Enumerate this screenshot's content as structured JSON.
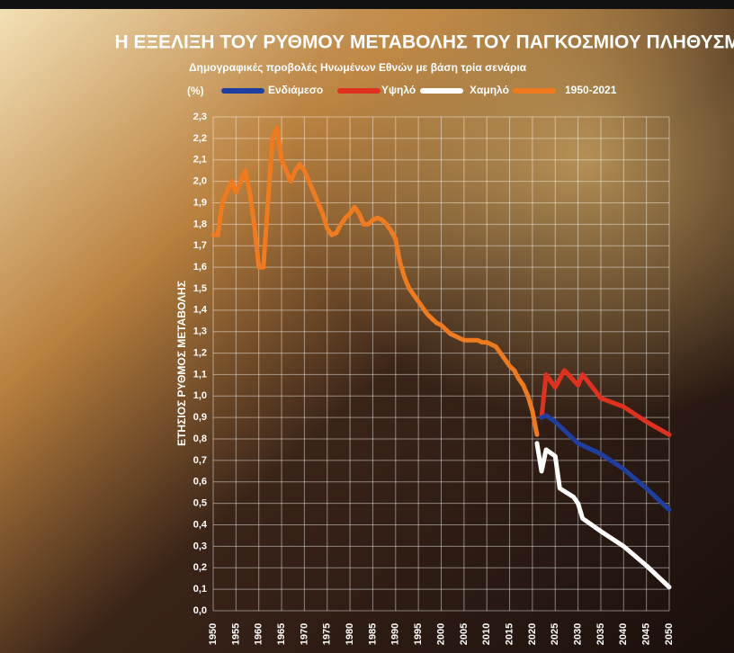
{
  "chart_data": {
    "type": "line",
    "title": "Η ΕΞΕΛΙΞΗ ΤΟΥ ΡΥΘΜΟΥ ΜΕΤΑΒΟΛΗΣ ΤΟΥ ΠΑΓΚΟΣΜΙΟΥ ΠΛΗΘΥΣΜΟΥ",
    "subtitle": "Δημογραφικές προβολές Ηνωμένων Εθνών με βάση τρία σενάρια",
    "unit": "(%)",
    "y_label": "ΕΤΗΣΙΟΣ ΡΥΘΜΟΣ ΜΕΤΑΒΟΛΗΣ",
    "xlim": [
      1950,
      2050
    ],
    "xticks": [
      1950,
      1955,
      1960,
      1965,
      1970,
      1975,
      1980,
      1985,
      1990,
      1995,
      2000,
      2005,
      2010,
      2015,
      2020,
      2025,
      2030,
      2035,
      2040,
      2045,
      2050
    ],
    "ylim": [
      0,
      2.3
    ],
    "yticks": [
      {
        "value": 0,
        "label": "0,0"
      },
      {
        "value": 0.1,
        "label": "0,1"
      },
      {
        "value": 0.2,
        "label": "0,2"
      },
      {
        "value": 0.3,
        "label": "0,3"
      },
      {
        "value": 0.4,
        "label": "0,4"
      },
      {
        "value": 0.5,
        "label": "0,5"
      },
      {
        "value": 0.6,
        "label": "0,6"
      },
      {
        "value": 0.7,
        "label": "0,7"
      },
      {
        "value": 0.8,
        "label": "0,8"
      },
      {
        "value": 0.9,
        "label": "0,9"
      },
      {
        "value": 1.0,
        "label": "1,0"
      },
      {
        "value": 1.1,
        "label": "1,1"
      },
      {
        "value": 1.2,
        "label": "1,2"
      },
      {
        "value": 1.3,
        "label": "1,3"
      },
      {
        "value": 1.4,
        "label": "1,4"
      },
      {
        "value": 1.5,
        "label": "1,5"
      },
      {
        "value": 1.6,
        "label": "1,6"
      },
      {
        "value": 1.7,
        "label": "1,7"
      },
      {
        "value": 1.8,
        "label": "1,8"
      },
      {
        "value": 1.9,
        "label": "1,9"
      },
      {
        "value": 2.0,
        "label": "2,0"
      },
      {
        "value": 2.1,
        "label": "2,1"
      },
      {
        "value": 2.2,
        "label": "2,2"
      },
      {
        "value": 2.3,
        "label": "2,3"
      }
    ],
    "grid": true,
    "series": [
      {
        "name": "Ενδιάμεσο",
        "color": "#1e3fa0",
        "x": [
          2022,
          2023,
          2025,
          2030,
          2035,
          2040,
          2045,
          2050
        ],
        "values": [
          0.9,
          0.91,
          0.88,
          0.78,
          0.73,
          0.66,
          0.57,
          0.47
        ]
      },
      {
        "name": "Υψηλό",
        "color": "#e0301e",
        "x": [
          2022,
          2023,
          2025,
          2027,
          2030,
          2031,
          2035,
          2040,
          2045,
          2050
        ],
        "values": [
          0.9,
          1.1,
          1.04,
          1.12,
          1.05,
          1.1,
          0.99,
          0.95,
          0.88,
          0.82
        ]
      },
      {
        "name": "Χαμηλό",
        "color": "#ffffff",
        "x": [
          2021,
          2022,
          2023,
          2025,
          2026,
          2029,
          2030,
          2031,
          2035,
          2040,
          2045,
          2050
        ],
        "values": [
          0.78,
          0.65,
          0.75,
          0.72,
          0.57,
          0.53,
          0.5,
          0.43,
          0.37,
          0.3,
          0.21,
          0.11
        ]
      },
      {
        "name": "1950-2021",
        "color": "#f07b1e",
        "x": [
          1950,
          1951,
          1952,
          1953,
          1954,
          1955,
          1956,
          1957,
          1958,
          1959,
          1960,
          1961,
          1962,
          1963,
          1964,
          1965,
          1966,
          1967,
          1968,
          1969,
          1970,
          1971,
          1972,
          1973,
          1974,
          1975,
          1976,
          1977,
          1978,
          1979,
          1980,
          1981,
          1982,
          1983,
          1984,
          1985,
          1986,
          1987,
          1988,
          1989,
          1990,
          1991,
          1992,
          1993,
          1994,
          1995,
          1996,
          1997,
          1998,
          1999,
          2000,
          2001,
          2002,
          2003,
          2004,
          2005,
          2006,
          2007,
          2008,
          2009,
          2010,
          2011,
          2012,
          2013,
          2014,
          2015,
          2016,
          2017,
          2018,
          2019,
          2020,
          2021
        ],
        "values": [
          1.75,
          1.75,
          1.9,
          1.95,
          2.0,
          1.95,
          2.0,
          2.05,
          1.95,
          1.8,
          1.6,
          1.6,
          1.9,
          2.2,
          2.25,
          2.1,
          2.05,
          2.0,
          2.05,
          2.08,
          2.05,
          2.0,
          1.95,
          1.9,
          1.85,
          1.78,
          1.75,
          1.76,
          1.8,
          1.83,
          1.85,
          1.88,
          1.85,
          1.8,
          1.8,
          1.82,
          1.83,
          1.82,
          1.8,
          1.77,
          1.73,
          1.62,
          1.55,
          1.5,
          1.47,
          1.44,
          1.41,
          1.38,
          1.36,
          1.34,
          1.33,
          1.31,
          1.29,
          1.28,
          1.27,
          1.26,
          1.26,
          1.26,
          1.26,
          1.25,
          1.25,
          1.24,
          1.23,
          1.2,
          1.17,
          1.14,
          1.12,
          1.08,
          1.05,
          1.0,
          0.93,
          0.82
        ]
      }
    ]
  }
}
